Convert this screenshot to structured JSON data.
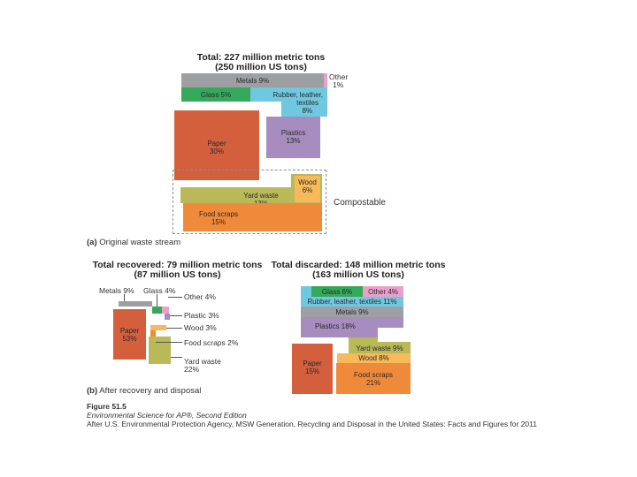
{
  "colors": {
    "metals": "#9d9fa2",
    "other": "#e9a0c9",
    "glass": "#35a95a",
    "rubber": "#6ec9e0",
    "plastics": "#a78cbf",
    "paper": "#d45f3c",
    "wood": "#f8b95a",
    "yard": "#b9b958",
    "food": "#ef8a3a",
    "dashed": "#8a8f99"
  },
  "panel_a": {
    "title_line1": "Total: 227 million metric tons",
    "title_line2": "(250 million US tons)",
    "metals": "Metals 9%",
    "other_line1": "Other",
    "other_line2": "1%",
    "glass": "Glass 5%",
    "rubber_line1": "Rubber, leather,",
    "rubber_line2": "textiles",
    "rubber_line3": "8%",
    "plastics_line1": "Plastics",
    "plastics_line2": "13%",
    "paper_line1": "Paper",
    "paper_line2": "30%",
    "wood_line1": "Wood",
    "wood_line2": "6%",
    "yard_line1": "Yard waste",
    "yard_line2": "13%",
    "food_line1": "Food scraps",
    "food_line2": "15%",
    "compostable": "Compostable",
    "caption_letter": "(a)",
    "caption_text": " Original waste stream"
  },
  "panel_b": {
    "recovered_title1": "Total recovered: 79 million metric tons",
    "recovered_title2": "(87 million US tons)",
    "discarded_title1": "Total discarded: 148 million metric tons",
    "discarded_title2": "(163 million US tons)",
    "rec_metals": "Metals 9%",
    "rec_glass": "Glass 4%",
    "rec_other": "Other 4%",
    "rec_plastic": "Plastic 3%",
    "rec_wood": "Wood 3%",
    "rec_food": "Food scraps 2%",
    "rec_yard_line1": "Yard waste",
    "rec_yard_line2": "22%",
    "rec_paper_line1": "Paper",
    "rec_paper_line2": "53%",
    "dis_glass": "Glass 6%",
    "dis_other": "Other 4%",
    "dis_rubber": "Rubber, leather, textiles 11%",
    "dis_metals": "Metals 9%",
    "dis_plastics": "Plastics 18%",
    "dis_yard": "Yard waste 9%",
    "dis_wood": "Wood 8%",
    "dis_paper_line1": "Paper",
    "dis_paper_line2": "15%",
    "dis_food_line1": "Food scraps",
    "dis_food_line2": "21%",
    "caption_letter": "(b)",
    "caption_text": " After recovery and disposal"
  },
  "footer": {
    "figure": "Figure 51.5",
    "book": "Environmental Science for AP®, Second Edition",
    "source": "After U.S. Environmental Protection Agency, MSW Generation, Recycling and Disposal in the United States: Facts and Figures for 2011"
  }
}
